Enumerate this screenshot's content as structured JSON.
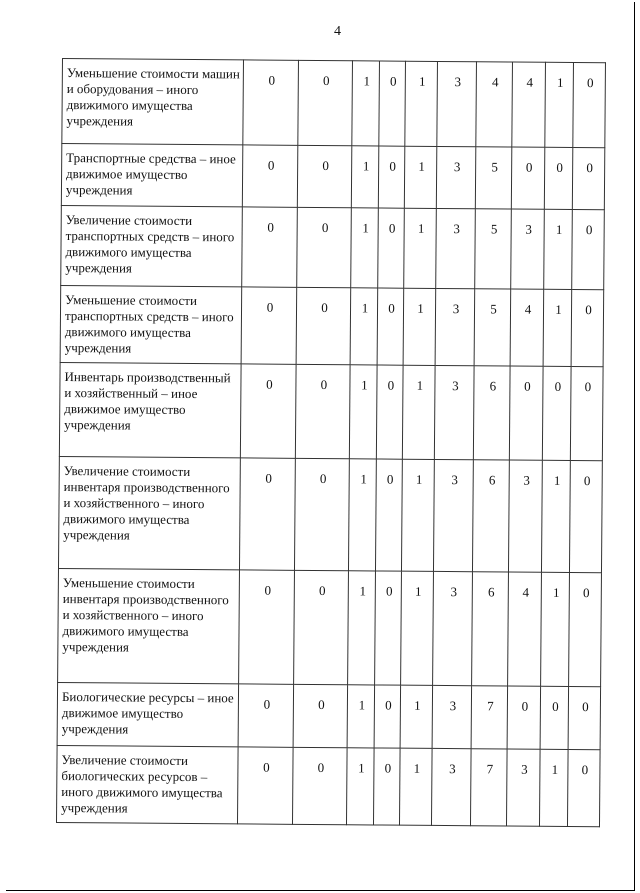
{
  "page_number": "4",
  "rows": [
    {
      "label": "Уменьшение стоимости машин и оборудования – иного движимого имущества учреждения",
      "codes": [
        "0",
        "0",
        "1",
        "0",
        "1",
        "3",
        "4",
        "4",
        "1",
        "0"
      ]
    },
    {
      "label": "Транспортные средства – иное движимое имущество учреждения",
      "codes": [
        "0",
        "0",
        "1",
        "0",
        "1",
        "3",
        "5",
        "0",
        "0",
        "0"
      ]
    },
    {
      "label": "Увеличение стоимости транспортных средств – иного движимого имущества учреждения",
      "codes": [
        "0",
        "0",
        "1",
        "0",
        "1",
        "3",
        "5",
        "3",
        "1",
        "0"
      ]
    },
    {
      "label": "Уменьшение стоимости транспортных средств – иного движимого имущества учреждения",
      "codes": [
        "0",
        "0",
        "1",
        "0",
        "1",
        "3",
        "5",
        "4",
        "1",
        "0"
      ]
    },
    {
      "label": "Инвентарь производственный и хозяйственный – иное движимое имущество учреждения",
      "codes": [
        "0",
        "0",
        "1",
        "0",
        "1",
        "3",
        "6",
        "0",
        "0",
        "0"
      ]
    },
    {
      "label": "Увеличение стоимости инвентаря производственного и хозяйственного – иного движимого имущества учреждения",
      "codes": [
        "0",
        "0",
        "1",
        "0",
        "1",
        "3",
        "6",
        "3",
        "1",
        "0"
      ]
    },
    {
      "label": "Уменьшение стоимости инвентаря производственного и хозяйственного – иного движимого имущества учреждения",
      "codes": [
        "0",
        "0",
        "1",
        "0",
        "1",
        "3",
        "6",
        "4",
        "1",
        "0"
      ]
    },
    {
      "label": "Биологические ресурсы – иное движимое имущество учреждения",
      "codes": [
        "0",
        "0",
        "1",
        "0",
        "1",
        "3",
        "7",
        "0",
        "0",
        "0"
      ]
    },
    {
      "label": "Увеличение стоимости биологических ресурсов – иного движимого имущества учреждения",
      "codes": [
        "0",
        "0",
        "1",
        "0",
        "1",
        "3",
        "7",
        "3",
        "1",
        "0"
      ]
    }
  ]
}
